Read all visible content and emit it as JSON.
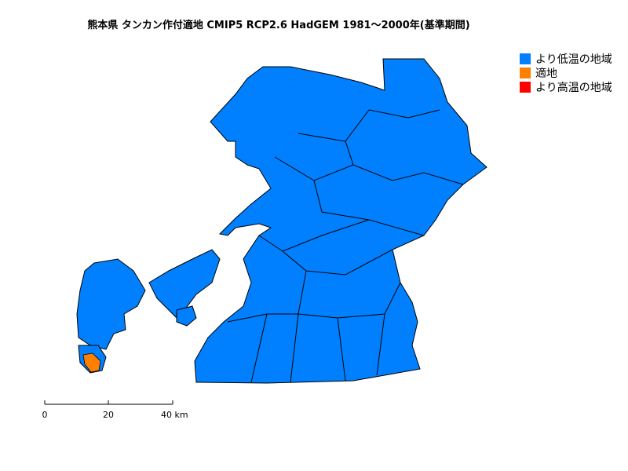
{
  "title": "熊本県 タンカン作付適地 CMIP5 RCP2.6 HadGEM 1981〜2000年(基準期間)",
  "legend": [
    {
      "label": "より低温の地域",
      "color": "#0080ff"
    },
    {
      "label": "適地",
      "color": "#ff8000"
    },
    {
      "label": "より高温の地域",
      "color": "#ff0000"
    }
  ],
  "scale_bar": {
    "ticks": [
      "0",
      "20",
      "40 km"
    ]
  },
  "map": {
    "region": "熊本県",
    "dominant_class": "より低温の地域",
    "border_color": "#000000"
  }
}
